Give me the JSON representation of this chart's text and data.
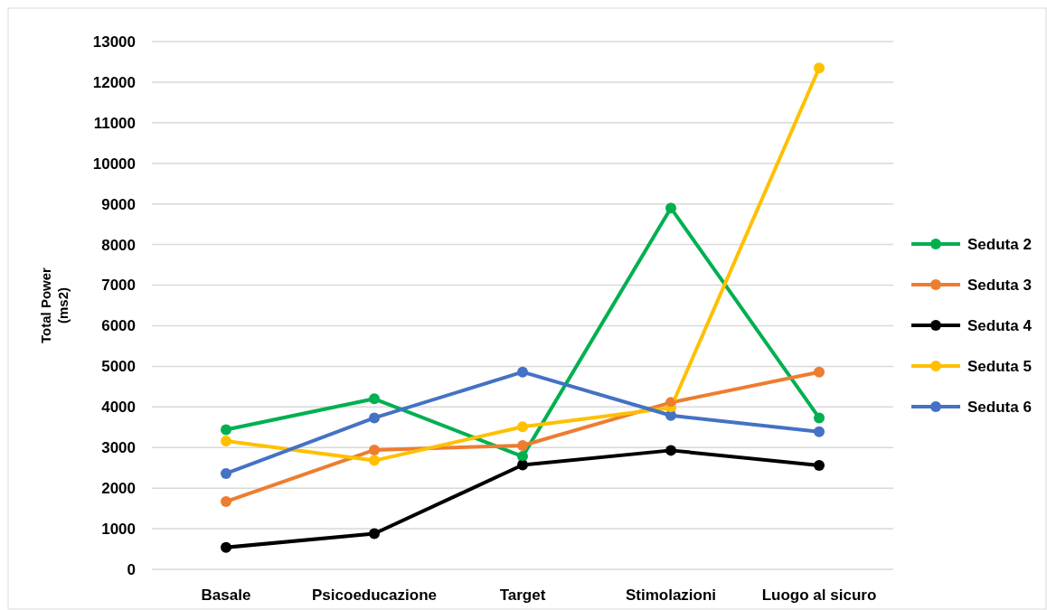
{
  "chart_data": {
    "type": "line",
    "ylabel": "Total Power\n(ms2)",
    "categories": [
      "Basale",
      "Psicoeducazione",
      "Target",
      "Stimolazioni",
      "Luogo al sicuro"
    ],
    "series": [
      {
        "name": "Seduta 2",
        "color": "#00b050",
        "values": [
          3440,
          4200,
          2780,
          8900,
          3730
        ]
      },
      {
        "name": "Seduta 3",
        "color": "#ed7d31",
        "values": [
          1670,
          2940,
          3050,
          4110,
          4860
        ]
      },
      {
        "name": "Seduta 4",
        "color": "#000000",
        "values": [
          540,
          880,
          2570,
          2930,
          2560
        ]
      },
      {
        "name": "Seduta 5",
        "color": "#ffc000",
        "values": [
          3160,
          2680,
          3510,
          3980,
          12350
        ]
      },
      {
        "name": "Seduta 6",
        "color": "#4472c4",
        "values": [
          2360,
          3730,
          4860,
          3790,
          3390
        ]
      }
    ],
    "ylim": [
      0,
      13000
    ],
    "yticks": [
      0,
      1000,
      2000,
      3000,
      4000,
      5000,
      6000,
      7000,
      8000,
      9000,
      10000,
      11000,
      12000,
      13000
    ],
    "grid": "y",
    "legend": "right",
    "marker": "circle",
    "line_style": "solid"
  }
}
